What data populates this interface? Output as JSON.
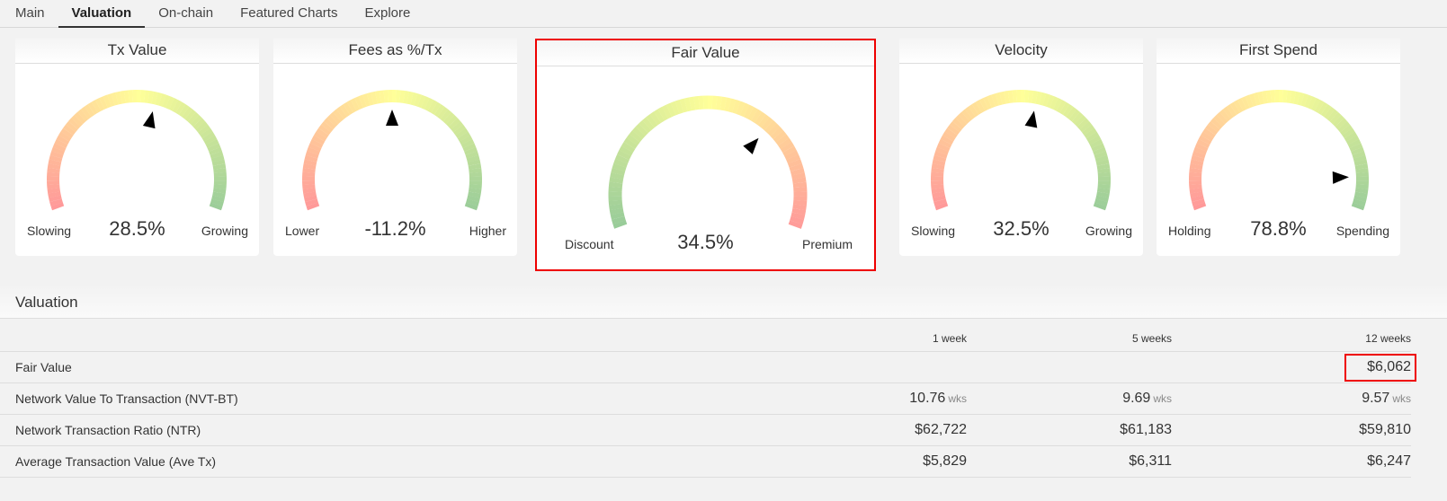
{
  "tabs": [
    "Main",
    "Valuation",
    "On-chain",
    "Featured Charts",
    "Explore"
  ],
  "active_tab": "Valuation",
  "gauges": [
    {
      "title": "Tx Value",
      "left_label": "Slowing",
      "right_label": "Growing",
      "value": "28.5%",
      "needle_position": 0.56,
      "reversed": false,
      "highlighted": false
    },
    {
      "title": "Fees as %/Tx",
      "left_label": "Lower",
      "right_label": "Higher",
      "value": "-11.2%",
      "needle_position": 0.5,
      "reversed": false,
      "highlighted": false
    },
    {
      "title": "Fair Value",
      "left_label": "Discount",
      "right_label": "Premium",
      "value": "34.5%",
      "needle_position": 0.69,
      "reversed": true,
      "highlighted": true
    },
    {
      "title": "Velocity",
      "left_label": "Slowing",
      "right_label": "Growing",
      "value": "32.5%",
      "needle_position": 0.55,
      "reversed": false,
      "highlighted": false
    },
    {
      "title": "First Spend",
      "left_label": "Holding",
      "right_label": "Spending",
      "value": "78.8%",
      "needle_position": 0.9,
      "reversed": false,
      "highlighted": false
    }
  ],
  "colors": {
    "red": "#ff9999",
    "yellow": "#ffff99",
    "green": "#99cc99",
    "highlight": "#e00000"
  },
  "section_title": "Valuation",
  "table": {
    "columns": [
      "",
      "1 week",
      "5 weeks",
      "12 weeks"
    ],
    "rows": [
      {
        "label": "Fair Value",
        "values": [
          "",
          "",
          "$6,062"
        ],
        "unit": ""
      },
      {
        "label": "Network Value To Transaction (NVT-BT)",
        "values": [
          "10.76",
          "9.69",
          "9.57"
        ],
        "unit": "wks"
      },
      {
        "label": "Network Transaction Ratio (NTR)",
        "values": [
          "$62,722",
          "$61,183",
          "$59,810"
        ],
        "unit": ""
      },
      {
        "label": "Average Transaction Value (Ave Tx)",
        "values": [
          "$5,829",
          "$6,311",
          "$6,247"
        ],
        "unit": ""
      }
    ]
  }
}
